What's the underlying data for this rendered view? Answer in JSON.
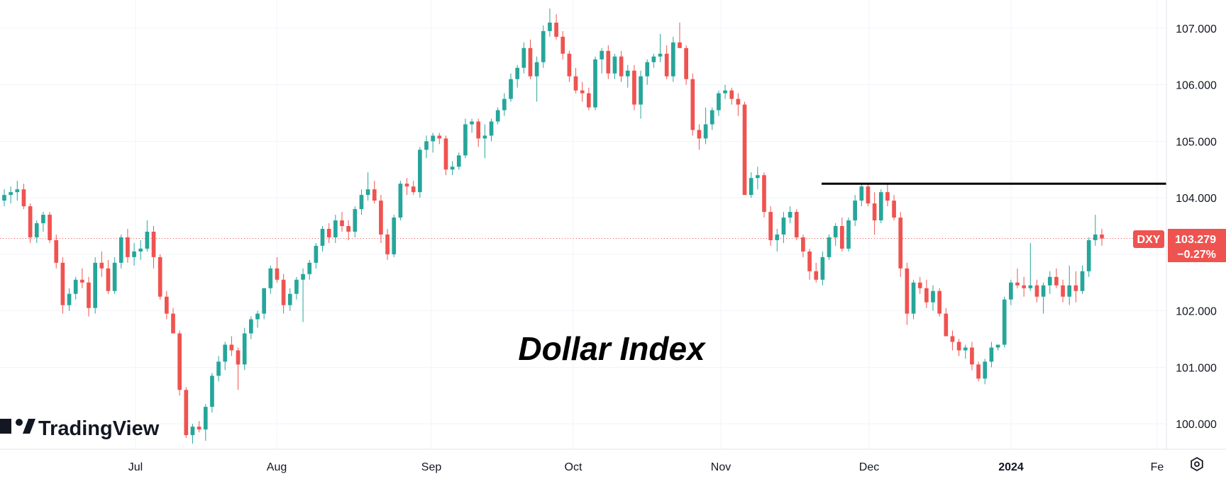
{
  "chart_data": {
    "type": "candlestick",
    "title": "Dollar Index",
    "symbol": "DXY",
    "last_price": "103.279",
    "change_pct": "−0.27%",
    "x_labels": [
      "Jul",
      "Aug",
      "Sep",
      "Oct",
      "Nov",
      "Dec",
      "2024",
      "Fe"
    ],
    "y_ticks": [
      "100.000",
      "101.000",
      "102.000",
      "103.000",
      "104.000",
      "105.000",
      "106.000",
      "107.000"
    ],
    "ylim": [
      99.55,
      107.4
    ],
    "resistance_level": 104.25,
    "colors": {
      "up": "#26a69a",
      "down": "#ef5350",
      "line": "#000000",
      "badge": "#ef5350"
    },
    "grid": true,
    "candles": [
      [
        103.95,
        104.15,
        103.85,
        104.05
      ],
      [
        104.05,
        104.2,
        103.9,
        104.1
      ],
      [
        104.1,
        104.3,
        103.95,
        104.15
      ],
      [
        104.15,
        104.25,
        103.8,
        103.85
      ],
      [
        103.85,
        103.9,
        103.2,
        103.3
      ],
      [
        103.3,
        103.6,
        103.2,
        103.55
      ],
      [
        103.55,
        103.75,
        103.4,
        103.7
      ],
      [
        103.7,
        103.75,
        103.2,
        103.25
      ],
      [
        103.25,
        103.35,
        102.75,
        102.85
      ],
      [
        102.85,
        102.95,
        101.95,
        102.1
      ],
      [
        102.1,
        102.4,
        102.0,
        102.3
      ],
      [
        102.3,
        102.6,
        102.2,
        102.55
      ],
      [
        102.55,
        102.75,
        102.4,
        102.5
      ],
      [
        102.5,
        102.6,
        101.9,
        102.05
      ],
      [
        102.05,
        102.95,
        101.95,
        102.85
      ],
      [
        102.85,
        103.05,
        102.6,
        102.75
      ],
      [
        102.75,
        102.9,
        102.3,
        102.35
      ],
      [
        102.35,
        102.95,
        102.3,
        102.85
      ],
      [
        102.85,
        103.35,
        102.75,
        103.3
      ],
      [
        103.3,
        103.45,
        102.85,
        102.95
      ],
      [
        102.95,
        103.2,
        102.8,
        103.05
      ],
      [
        103.05,
        103.25,
        102.9,
        103.1
      ],
      [
        103.1,
        103.6,
        103.05,
        103.4
      ],
      [
        103.4,
        103.5,
        102.75,
        102.95
      ],
      [
        102.95,
        103.0,
        102.2,
        102.25
      ],
      [
        102.25,
        102.35,
        101.85,
        101.95
      ],
      [
        101.95,
        102.05,
        101.65,
        101.6
      ],
      [
        101.6,
        101.65,
        100.5,
        100.6
      ],
      [
        100.6,
        100.65,
        99.75,
        99.8
      ],
      [
        99.8,
        100.0,
        99.65,
        99.95
      ],
      [
        99.95,
        100.05,
        99.85,
        99.9
      ],
      [
        99.9,
        100.35,
        99.7,
        100.3
      ],
      [
        100.3,
        100.9,
        100.2,
        100.85
      ],
      [
        100.85,
        101.2,
        100.75,
        101.1
      ],
      [
        101.1,
        101.45,
        100.95,
        101.4
      ],
      [
        101.4,
        101.55,
        101.2,
        101.3
      ],
      [
        101.3,
        101.35,
        100.6,
        101.05
      ],
      [
        101.05,
        101.7,
        100.95,
        101.6
      ],
      [
        101.6,
        101.9,
        101.5,
        101.85
      ],
      [
        101.85,
        102.0,
        101.7,
        101.95
      ],
      [
        101.95,
        102.4,
        101.85,
        102.4
      ],
      [
        102.4,
        102.8,
        102.3,
        102.75
      ],
      [
        102.75,
        102.95,
        102.5,
        102.55
      ],
      [
        102.55,
        102.65,
        101.95,
        102.1
      ],
      [
        102.1,
        102.4,
        102.0,
        102.3
      ],
      [
        102.3,
        102.6,
        102.2,
        102.55
      ],
      [
        102.55,
        102.75,
        101.8,
        102.65
      ],
      [
        102.65,
        102.9,
        102.55,
        102.85
      ],
      [
        102.85,
        103.2,
        102.75,
        103.15
      ],
      [
        103.15,
        103.5,
        103.05,
        103.45
      ],
      [
        103.45,
        103.55,
        103.2,
        103.3
      ],
      [
        103.3,
        103.7,
        103.2,
        103.6
      ],
      [
        103.6,
        103.75,
        103.4,
        103.5
      ],
      [
        103.5,
        103.6,
        103.25,
        103.4
      ],
      [
        103.4,
        103.85,
        103.3,
        103.8
      ],
      [
        103.8,
        104.15,
        103.7,
        104.05
      ],
      [
        104.05,
        104.45,
        103.95,
        104.15
      ],
      [
        104.15,
        104.3,
        103.9,
        103.95
      ],
      [
        103.95,
        104.05,
        103.2,
        103.35
      ],
      [
        103.35,
        103.45,
        102.9,
        103.0
      ],
      [
        103.0,
        103.7,
        102.95,
        103.65
      ],
      [
        103.65,
        104.3,
        103.6,
        104.25
      ],
      [
        104.25,
        104.35,
        104.05,
        104.2
      ],
      [
        104.2,
        104.3,
        104.05,
        104.1
      ],
      [
        104.1,
        104.9,
        104.0,
        104.85
      ],
      [
        104.85,
        105.1,
        104.7,
        105.0
      ],
      [
        105.0,
        105.15,
        104.8,
        105.1
      ],
      [
        105.1,
        105.15,
        104.95,
        105.05
      ],
      [
        105.05,
        105.1,
        104.4,
        104.5
      ],
      [
        104.5,
        104.65,
        104.4,
        104.55
      ],
      [
        104.55,
        104.8,
        104.5,
        104.75
      ],
      [
        104.75,
        105.4,
        104.7,
        105.3
      ],
      [
        105.3,
        105.4,
        105.15,
        105.35
      ],
      [
        105.35,
        105.4,
        104.9,
        105.05
      ],
      [
        105.05,
        105.3,
        104.7,
        105.1
      ],
      [
        105.1,
        105.4,
        105.0,
        105.35
      ],
      [
        105.35,
        105.6,
        105.3,
        105.55
      ],
      [
        105.55,
        105.85,
        105.45,
        105.75
      ],
      [
        105.75,
        106.2,
        105.7,
        106.1
      ],
      [
        106.1,
        106.35,
        105.95,
        106.3
      ],
      [
        106.3,
        106.75,
        106.2,
        106.65
      ],
      [
        106.65,
        106.8,
        106.1,
        106.15
      ],
      [
        106.15,
        106.5,
        105.7,
        106.4
      ],
      [
        106.4,
        107.05,
        106.3,
        106.95
      ],
      [
        106.95,
        107.35,
        106.85,
        107.1
      ],
      [
        107.1,
        107.25,
        106.8,
        106.85
      ],
      [
        106.85,
        106.95,
        106.45,
        106.55
      ],
      [
        106.55,
        106.6,
        106.05,
        106.15
      ],
      [
        106.15,
        106.3,
        105.85,
        105.9
      ],
      [
        105.9,
        106.05,
        105.7,
        105.85
      ],
      [
        105.85,
        105.95,
        105.55,
        105.6
      ],
      [
        105.6,
        106.5,
        105.55,
        106.45
      ],
      [
        106.45,
        106.65,
        106.2,
        106.6
      ],
      [
        106.6,
        106.7,
        106.1,
        106.2
      ],
      [
        106.2,
        106.55,
        106.1,
        106.5
      ],
      [
        106.5,
        106.6,
        106.05,
        106.15
      ],
      [
        106.15,
        106.35,
        105.95,
        106.25
      ],
      [
        106.25,
        106.35,
        105.55,
        105.65
      ],
      [
        105.65,
        106.25,
        105.4,
        106.15
      ],
      [
        106.15,
        106.45,
        106.0,
        106.4
      ],
      [
        106.4,
        106.55,
        106.3,
        106.5
      ],
      [
        106.5,
        106.9,
        106.4,
        106.55
      ],
      [
        106.55,
        106.7,
        106.1,
        106.15
      ],
      [
        106.15,
        106.85,
        106.05,
        106.75
      ],
      [
        106.75,
        107.1,
        106.65,
        106.65
      ],
      [
        106.65,
        106.7,
        106.0,
        106.1
      ],
      [
        106.1,
        106.2,
        105.1,
        105.2
      ],
      [
        105.2,
        105.3,
        104.85,
        105.05
      ],
      [
        105.05,
        105.6,
        104.95,
        105.3
      ],
      [
        105.3,
        105.6,
        105.2,
        105.55
      ],
      [
        105.55,
        105.9,
        105.45,
        105.85
      ],
      [
        105.85,
        106.0,
        105.75,
        105.9
      ],
      [
        105.9,
        105.95,
        105.65,
        105.75
      ],
      [
        105.75,
        105.85,
        105.45,
        105.65
      ],
      [
        105.65,
        105.7,
        104.05,
        104.05
      ],
      [
        104.05,
        104.45,
        104.0,
        104.35
      ],
      [
        104.35,
        104.55,
        104.15,
        104.4
      ],
      [
        104.4,
        104.45,
        103.65,
        103.75
      ],
      [
        103.75,
        103.85,
        103.15,
        103.25
      ],
      [
        103.25,
        103.45,
        103.05,
        103.35
      ],
      [
        103.35,
        103.75,
        103.2,
        103.65
      ],
      [
        103.65,
        103.85,
        103.55,
        103.75
      ],
      [
        103.75,
        103.8,
        103.25,
        103.3
      ],
      [
        103.3,
        103.35,
        102.95,
        103.05
      ],
      [
        103.05,
        103.1,
        102.55,
        102.7
      ],
      [
        102.7,
        102.85,
        102.5,
        102.55
      ],
      [
        102.55,
        103.05,
        102.45,
        102.95
      ],
      [
        102.95,
        103.35,
        102.9,
        103.3
      ],
      [
        103.3,
        103.55,
        103.15,
        103.5
      ],
      [
        103.5,
        103.65,
        103.05,
        103.1
      ],
      [
        103.1,
        103.65,
        103.05,
        103.6
      ],
      [
        103.6,
        104.05,
        103.5,
        103.95
      ],
      [
        103.95,
        104.25,
        103.85,
        104.2
      ],
      [
        104.2,
        104.25,
        103.85,
        103.9
      ],
      [
        103.9,
        104.1,
        103.35,
        103.6
      ],
      [
        103.6,
        104.15,
        103.55,
        104.1
      ],
      [
        104.1,
        104.25,
        103.85,
        103.95
      ],
      [
        103.95,
        104.05,
        103.6,
        103.65
      ],
      [
        103.65,
        103.75,
        102.6,
        102.75
      ],
      [
        102.75,
        102.85,
        101.75,
        101.95
      ],
      [
        101.95,
        102.55,
        101.85,
        102.5
      ],
      [
        102.5,
        102.6,
        102.3,
        102.4
      ],
      [
        102.4,
        102.55,
        102.05,
        102.15
      ],
      [
        102.15,
        102.45,
        102.0,
        102.35
      ],
      [
        102.35,
        102.4,
        101.9,
        101.95
      ],
      [
        101.95,
        102.05,
        101.55,
        101.55
      ],
      [
        101.55,
        101.65,
        101.3,
        101.45
      ],
      [
        101.45,
        101.5,
        101.2,
        101.3
      ],
      [
        101.3,
        101.4,
        101.15,
        101.35
      ],
      [
        101.35,
        101.45,
        100.95,
        101.05
      ],
      [
        101.05,
        101.1,
        100.75,
        100.8
      ],
      [
        100.8,
        101.15,
        100.7,
        101.1
      ],
      [
        101.1,
        101.45,
        101.0,
        101.35
      ],
      [
        101.35,
        101.4,
        101.3,
        101.4
      ],
      [
        101.4,
        102.25,
        101.35,
        102.2
      ],
      [
        102.2,
        102.55,
        102.1,
        102.5
      ],
      [
        102.5,
        102.75,
        102.4,
        102.45
      ],
      [
        102.45,
        102.6,
        102.25,
        102.4
      ],
      [
        102.4,
        103.2,
        102.35,
        102.45
      ],
      [
        102.45,
        102.55,
        102.15,
        102.25
      ],
      [
        102.25,
        102.5,
        101.95,
        102.45
      ],
      [
        102.45,
        102.7,
        102.3,
        102.6
      ],
      [
        102.6,
        102.75,
        102.4,
        102.45
      ],
      [
        102.45,
        102.55,
        102.15,
        102.25
      ],
      [
        102.25,
        102.8,
        102.1,
        102.45
      ],
      [
        102.45,
        102.7,
        102.15,
        102.35
      ],
      [
        102.35,
        102.8,
        102.3,
        102.7
      ],
      [
        102.7,
        103.3,
        102.6,
        103.25
      ],
      [
        103.25,
        103.7,
        103.15,
        103.35
      ],
      [
        103.35,
        103.45,
        103.15,
        103.28
      ]
    ]
  },
  "brand": {
    "name": "TradingView"
  },
  "icons": {
    "settings": "settings-gear-icon",
    "logo": "tradingview-logo-icon"
  }
}
